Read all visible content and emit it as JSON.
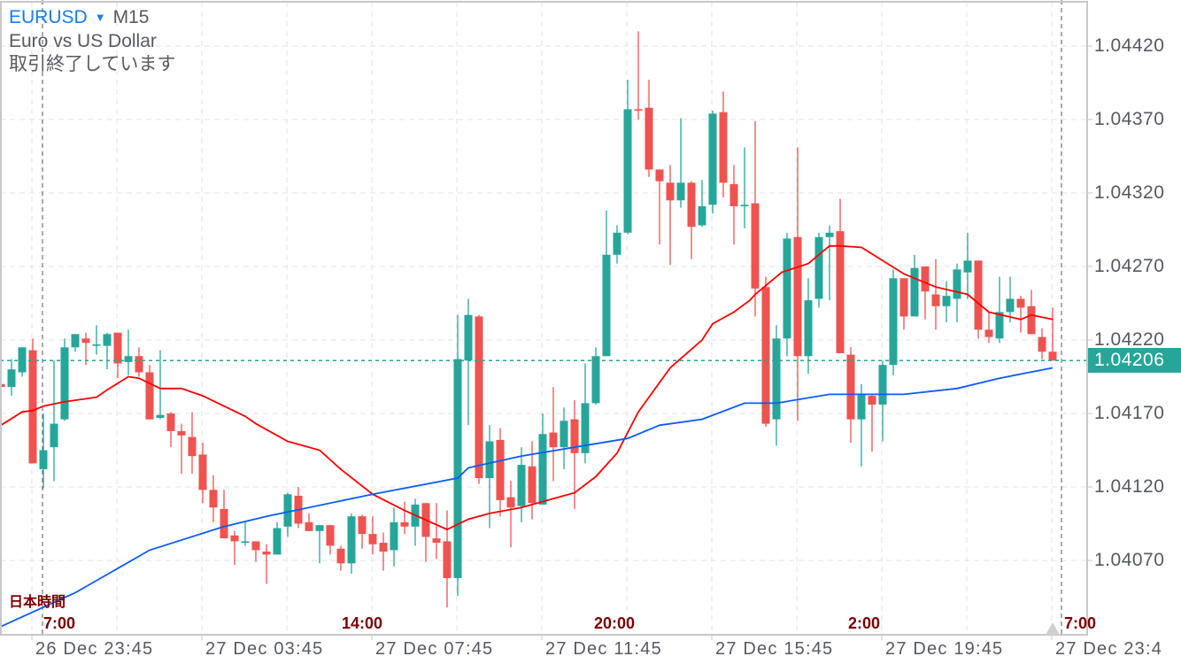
{
  "header": {
    "symbol": "EURUSD",
    "timeframe": "M15",
    "description": "Euro vs US Dollar",
    "status": "取引終了しています"
  },
  "yaxis": {
    "ticks": [
      "1.04420",
      "1.04370",
      "1.04320",
      "1.04270",
      "1.04220",
      "1.04170",
      "1.04120",
      "1.04070"
    ],
    "current_price": "1.04206"
  },
  "xaxis": {
    "labels": [
      "26 Dec 23:45",
      "27 Dec 03:45",
      "27 Dec 07:45",
      "27 Dec 11:45",
      "27 Dec 15:45",
      "27 Dec 19:45",
      "27 Dec 23:4"
    ]
  },
  "jst": {
    "title": "日本時間",
    "labels": [
      "7:00",
      "14:00",
      "20:00",
      "2:00",
      "7:00"
    ]
  },
  "colors": {
    "bull": "#26a69a",
    "bear": "#ef5350",
    "ma_fast": "#ff0000",
    "ma_slow": "#0a5cff",
    "symbol": "#1a7cf0",
    "jst": "#7a0000"
  },
  "chart_data": {
    "type": "candlestick",
    "title": "EURUSD M15",
    "ylim": [
      1.0401,
      1.04451
    ],
    "grid": true,
    "candle_fields": [
      "open",
      "high",
      "low",
      "close"
    ],
    "first_candle_time": "26 Dec 21:15",
    "interval_minutes": 15,
    "candles": [
      [
        1.0419,
        1.0419,
        1.04188,
        1.04188
      ],
      [
        1.04188,
        1.04207,
        1.04182,
        1.042
      ],
      [
        1.04198,
        1.04215,
        1.04195,
        1.04215
      ],
      [
        1.04213,
        1.04221,
        1.04136,
        1.04136
      ],
      [
        1.04132,
        1.0417,
        1.04119,
        1.04145
      ],
      [
        1.04147,
        1.04206,
        1.04124,
        1.04163
      ],
      [
        1.04166,
        1.04221,
        1.04165,
        1.04215
      ],
      [
        1.04215,
        1.04224,
        1.04212,
        1.04224
      ],
      [
        1.04221,
        1.04225,
        1.04203,
        1.04218
      ],
      [
        1.04216,
        1.0423,
        1.0421,
        1.04217
      ],
      [
        1.04216,
        1.04225,
        1.042,
        1.04224
      ],
      [
        1.04225,
        1.04225,
        1.04194,
        1.04204
      ],
      [
        1.04205,
        1.04227,
        1.04196,
        1.04209
      ],
      [
        1.04209,
        1.04215,
        1.04195,
        1.04198
      ],
      [
        1.04198,
        1.04203,
        1.04166,
        1.04166
      ],
      [
        1.04167,
        1.04213,
        1.04166,
        1.04169
      ],
      [
        1.0417,
        1.04171,
        1.04147,
        1.04158
      ],
      [
        1.04158,
        1.04163,
        1.04129,
        1.04155
      ],
      [
        1.04154,
        1.04171,
        1.04129,
        1.04141
      ],
      [
        1.04142,
        1.0415,
        1.04109,
        1.04118
      ],
      [
        1.04118,
        1.04128,
        1.04096,
        1.04106
      ],
      [
        1.04105,
        1.04118,
        1.04085,
        1.04085
      ],
      [
        1.04087,
        1.0409,
        1.04067,
        1.04083
      ],
      [
        1.04082,
        1.04096,
        1.0408,
        1.04083
      ],
      [
        1.04083,
        1.04083,
        1.04069,
        1.04077
      ],
      [
        1.04076,
        1.04081,
        1.04054,
        1.04074
      ],
      [
        1.04074,
        1.04096,
        1.04074,
        1.04092
      ],
      [
        1.04093,
        1.04116,
        1.04086,
        1.04115
      ],
      [
        1.04114,
        1.0412,
        1.04092,
        1.04095
      ],
      [
        1.04096,
        1.04102,
        1.0409,
        1.0409
      ],
      [
        1.0409,
        1.04094,
        1.04068,
        1.04094
      ],
      [
        1.04094,
        1.04094,
        1.04074,
        1.0408
      ],
      [
        1.04078,
        1.0408,
        1.04063,
        1.04068
      ],
      [
        1.04068,
        1.04102,
        1.04061,
        1.041
      ],
      [
        1.041,
        1.04101,
        1.04078,
        1.04088
      ],
      [
        1.04088,
        1.041,
        1.04074,
        1.04081
      ],
      [
        1.04082,
        1.04089,
        1.04063,
        1.04076
      ],
      [
        1.04077,
        1.04106,
        1.04066,
        1.04096
      ],
      [
        1.04096,
        1.0411,
        1.04088,
        1.04093
      ],
      [
        1.04093,
        1.04112,
        1.0408,
        1.04108
      ],
      [
        1.04109,
        1.04109,
        1.04069,
        1.04086
      ],
      [
        1.04085,
        1.04109,
        1.04071,
        1.04082
      ],
      [
        1.04083,
        1.04104,
        1.04038,
        1.04058
      ],
      [
        1.04058,
        1.04237,
        1.04046,
        1.04207
      ],
      [
        1.04206,
        1.04248,
        1.04162,
        1.04237
      ],
      [
        1.04236,
        1.04237,
        1.04122,
        1.04126
      ],
      [
        1.04126,
        1.04162,
        1.04092,
        1.04151
      ],
      [
        1.04152,
        1.0416,
        1.041,
        1.04111
      ],
      [
        1.04113,
        1.04124,
        1.04079,
        1.04106
      ],
      [
        1.04107,
        1.04147,
        1.04096,
        1.04135
      ],
      [
        1.04134,
        1.04151,
        1.04098,
        1.04109
      ],
      [
        1.04108,
        1.0417,
        1.04108,
        1.04156
      ],
      [
        1.04157,
        1.04188,
        1.04124,
        1.04147
      ],
      [
        1.04147,
        1.04174,
        1.04132,
        1.04165
      ],
      [
        1.04166,
        1.04179,
        1.04105,
        1.04143
      ],
      [
        1.04143,
        1.04204,
        1.04136,
        1.04177
      ],
      [
        1.04177,
        1.04215,
        1.04176,
        1.04209
      ],
      [
        1.04209,
        1.04308,
        1.04209,
        1.04278
      ],
      [
        1.04278,
        1.04298,
        1.04272,
        1.04293
      ],
      [
        1.04293,
        1.04397,
        1.04292,
        1.04377
      ],
      [
        1.04377,
        1.0443,
        1.0437,
        1.04376
      ],
      [
        1.04378,
        1.04397,
        1.04331,
        1.04336
      ],
      [
        1.04336,
        1.04336,
        1.04285,
        1.04328
      ],
      [
        1.04327,
        1.04339,
        1.04271,
        1.04315
      ],
      [
        1.04315,
        1.04371,
        1.0431,
        1.04327
      ],
      [
        1.04327,
        1.04328,
        1.04275,
        1.04297
      ],
      [
        1.04298,
        1.04329,
        1.04297,
        1.04311
      ],
      [
        1.04312,
        1.04376,
        1.04306,
        1.04374
      ],
      [
        1.04375,
        1.04389,
        1.04317,
        1.04327
      ],
      [
        1.04326,
        1.04339,
        1.04285,
        1.04311
      ],
      [
        1.04311,
        1.04351,
        1.04296,
        1.04312
      ],
      [
        1.04313,
        1.04369,
        1.04236,
        1.04255
      ],
      [
        1.04256,
        1.04263,
        1.04161,
        1.04163
      ],
      [
        1.04166,
        1.0423,
        1.04148,
        1.04221
      ],
      [
        1.04221,
        1.04293,
        1.04209,
        1.04289
      ],
      [
        1.0429,
        1.04351,
        1.04165,
        1.04209
      ],
      [
        1.04209,
        1.04262,
        1.04197,
        1.04247
      ],
      [
        1.04248,
        1.04293,
        1.04242,
        1.0429
      ],
      [
        1.0429,
        1.04298,
        1.04247,
        1.04293
      ],
      [
        1.04294,
        1.04316,
        1.04211,
        1.04211
      ],
      [
        1.0421,
        1.04215,
        1.0415,
        1.04166
      ],
      [
        1.04166,
        1.0419,
        1.04134,
        1.04183
      ],
      [
        1.04182,
        1.04183,
        1.04144,
        1.04176
      ],
      [
        1.04176,
        1.04206,
        1.04151,
        1.04203
      ],
      [
        1.04203,
        1.04268,
        1.04196,
        1.04262
      ],
      [
        1.04262,
        1.04262,
        1.04227,
        1.04236
      ],
      [
        1.04236,
        1.04278,
        1.04236,
        1.04269
      ],
      [
        1.0427,
        1.0427,
        1.04234,
        1.04253
      ],
      [
        1.04251,
        1.04275,
        1.04227,
        1.04243
      ],
      [
        1.04243,
        1.0426,
        1.04232,
        1.0425
      ],
      [
        1.04248,
        1.04272,
        1.04232,
        1.04268
      ],
      [
        1.04266,
        1.04293,
        1.04248,
        1.04274
      ],
      [
        1.04274,
        1.04274,
        1.04221,
        1.04227
      ],
      [
        1.04227,
        1.04239,
        1.04218,
        1.04222
      ],
      [
        1.04221,
        1.04263,
        1.04218,
        1.04239
      ],
      [
        1.04239,
        1.04263,
        1.04232,
        1.04248
      ],
      [
        1.04248,
        1.0425,
        1.04225,
        1.04242
      ],
      [
        1.04243,
        1.04254,
        1.04224,
        1.04224
      ],
      [
        1.04222,
        1.04228,
        1.04207,
        1.04212
      ],
      [
        1.04212,
        1.04242,
        1.04206,
        1.04206
      ]
    ],
    "ma_fast": [
      [
        0,
        1.04162
      ],
      [
        2,
        1.04171
      ],
      [
        3,
        1.04172
      ],
      [
        4,
        1.04175
      ],
      [
        6,
        1.04178
      ],
      [
        8,
        1.0418
      ],
      [
        9,
        1.04181
      ],
      [
        10,
        1.04186
      ],
      [
        12,
        1.04195
      ],
      [
        13,
        1.04194
      ],
      [
        15,
        1.04187
      ],
      [
        17,
        1.04187
      ],
      [
        19,
        1.04182
      ],
      [
        21,
        1.04175
      ],
      [
        23,
        1.04168
      ],
      [
        24,
        1.04163
      ],
      [
        27,
        1.04151
      ],
      [
        30,
        1.04145
      ],
      [
        32,
        1.04132
      ],
      [
        35,
        1.04115
      ],
      [
        38,
        1.04104
      ],
      [
        42,
        1.04091
      ],
      [
        44,
        1.04098
      ],
      [
        46,
        1.04102
      ],
      [
        49,
        1.04106
      ],
      [
        54,
        1.04116
      ],
      [
        56,
        1.04127
      ],
      [
        58,
        1.04143
      ],
      [
        60,
        1.04171
      ],
      [
        63,
        1.04201
      ],
      [
        66,
        1.0422
      ],
      [
        67,
        1.04231
      ],
      [
        69,
        1.04239
      ],
      [
        70.5,
        1.04247
      ],
      [
        71,
        1.04251
      ],
      [
        73.5,
        1.04266
      ],
      [
        76,
        1.04272
      ],
      [
        78,
        1.04284
      ],
      [
        79,
        1.04284
      ],
      [
        81,
        1.04283
      ],
      [
        85,
        1.04265
      ],
      [
        88,
        1.04256
      ],
      [
        91,
        1.04251
      ],
      [
        93,
        1.04239
      ],
      [
        96,
        1.04234
      ],
      [
        97,
        1.04237
      ],
      [
        99,
        1.04234
      ]
    ],
    "ma_slow": [
      [
        0,
        1.04025
      ],
      [
        7,
        1.04048
      ],
      [
        14,
        1.04077
      ],
      [
        21,
        1.04093
      ],
      [
        25,
        1.041
      ],
      [
        35,
        1.04115
      ],
      [
        43,
        1.04126
      ],
      [
        44,
        1.04133
      ],
      [
        49,
        1.04141
      ],
      [
        59,
        1.04153
      ],
      [
        62,
        1.04162
      ],
      [
        66,
        1.04166
      ],
      [
        70,
        1.04177
      ],
      [
        73,
        1.04177
      ],
      [
        78,
        1.04183
      ],
      [
        85,
        1.04183
      ],
      [
        90,
        1.04187
      ],
      [
        94,
        1.04194
      ],
      [
        99,
        1.04201
      ]
    ]
  }
}
